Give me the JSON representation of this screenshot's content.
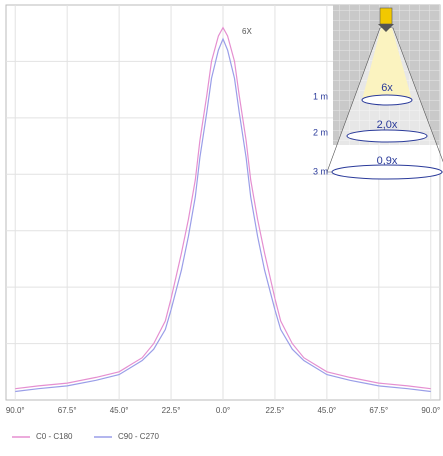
{
  "chart_data": {
    "type": "line",
    "x": [
      -90,
      -80,
      -67.5,
      -55,
      -45,
      -35,
      -30,
      -25,
      -22.5,
      -18,
      -15,
      -12,
      -10,
      -7,
      -5,
      -2,
      0,
      2,
      5,
      7,
      10,
      12,
      15,
      18,
      22.5,
      25,
      30,
      35,
      45,
      55,
      67.5,
      80,
      90
    ],
    "series": [
      {
        "name": "C0 - C180",
        "color": "#e58fd0",
        "values": [
          0.2,
          0.25,
          0.3,
          0.4,
          0.5,
          0.75,
          1.0,
          1.4,
          1.8,
          2.6,
          3.2,
          3.9,
          4.6,
          5.4,
          6.0,
          6.45,
          6.6,
          6.45,
          6.0,
          5.4,
          4.6,
          3.9,
          3.2,
          2.6,
          1.8,
          1.4,
          1.0,
          0.75,
          0.5,
          0.4,
          0.3,
          0.25,
          0.2
        ]
      },
      {
        "name": "C90 - C270",
        "color": "#9a9ee8",
        "values": [
          0.15,
          0.2,
          0.25,
          0.35,
          0.45,
          0.7,
          0.9,
          1.25,
          1.6,
          2.3,
          2.9,
          3.6,
          4.3,
          5.1,
          5.7,
          6.2,
          6.4,
          6.2,
          5.7,
          5.1,
          4.3,
          3.6,
          2.9,
          2.3,
          1.6,
          1.25,
          0.9,
          0.7,
          0.45,
          0.35,
          0.25,
          0.2,
          0.15
        ]
      }
    ],
    "xlim": [
      -94,
      94
    ],
    "xticks": [
      {
        "value": -90,
        "label": "90.0°"
      },
      {
        "value": -67.5,
        "label": "67.5°"
      },
      {
        "value": -45,
        "label": "45.0°"
      },
      {
        "value": -22.5,
        "label": "22.5°"
      },
      {
        "value": 0,
        "label": "0.0°"
      },
      {
        "value": 22.5,
        "label": "22.5°"
      },
      {
        "value": 45,
        "label": "45.0°"
      },
      {
        "value": 67.5,
        "label": "67.5°"
      },
      {
        "value": 90,
        "label": "90.0°"
      }
    ],
    "ylim": [
      0,
      7
    ],
    "yticks": [
      1,
      2,
      3,
      4,
      5,
      6
    ],
    "grid": true,
    "peak_label": "6X",
    "inset": {
      "distances": [
        "1 m",
        "2 m",
        "3 m"
      ],
      "factors": [
        "6x",
        "2,0x",
        "0,9x"
      ]
    }
  }
}
